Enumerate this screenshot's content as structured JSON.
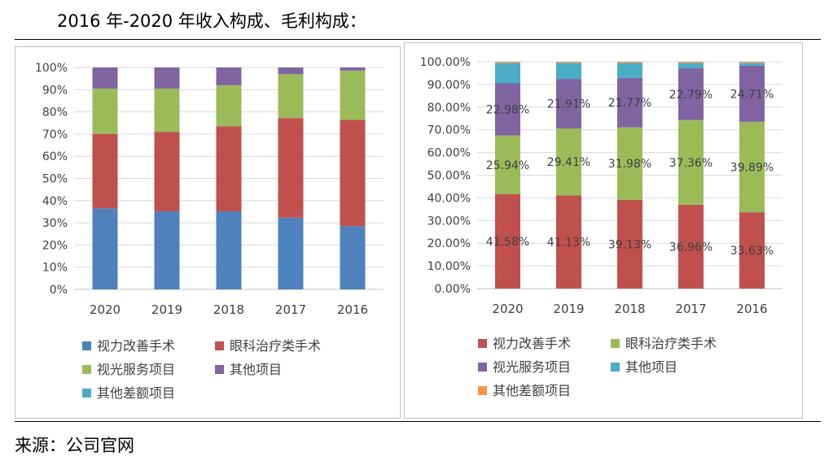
{
  "title": "2016 年-2020 年收入构成、毛利构成：",
  "source": "来源：公司官网",
  "chart_data": [
    {
      "type": "bar",
      "stacked": true,
      "name": "收入构成",
      "categories": [
        "2020",
        "2019",
        "2018",
        "2017",
        "2016"
      ],
      "ylim": [
        0,
        100
      ],
      "yticks": [
        "0%",
        "10%",
        "20%",
        "30%",
        "40%",
        "50%",
        "60%",
        "70%",
        "80%",
        "90%",
        "100%"
      ],
      "legend_position": "bottom",
      "series": [
        {
          "name": "视力改善手术",
          "color": "#4f81bd",
          "values": [
            36.5,
            35.2,
            35.2,
            32.3,
            28.5
          ]
        },
        {
          "name": "眼科治疗类手术",
          "color": "#c0504d",
          "values": [
            33.5,
            35.8,
            38.3,
            44.9,
            47.9
          ]
        },
        {
          "name": "视光服务项目",
          "color": "#9bbb59",
          "values": [
            20.5,
            19.5,
            18.5,
            19.8,
            22.2
          ]
        },
        {
          "name": "其他项目",
          "color": "#8064a2",
          "values": [
            9.5,
            9.5,
            8.0,
            3.0,
            1.4
          ]
        },
        {
          "name": "其他差额项目",
          "color": "#4bacc6",
          "values": [
            0,
            0,
            0,
            0,
            0
          ]
        }
      ]
    },
    {
      "type": "bar",
      "stacked": true,
      "name": "毛利构成",
      "categories": [
        "2020",
        "2019",
        "2018",
        "2017",
        "2016"
      ],
      "ylim": [
        0,
        100
      ],
      "yticks": [
        "0.00%",
        "10.00%",
        "20.00%",
        "30.00%",
        "40.00%",
        "50.00%",
        "60.00%",
        "70.00%",
        "80.00%",
        "90.00%",
        "100.00%"
      ],
      "legend_position": "bottom",
      "series": [
        {
          "name": "视力改善手术",
          "color": "#c0504d",
          "values": [
            41.58,
            41.13,
            39.13,
            36.96,
            33.63
          ],
          "labels": [
            "41.58%",
            "41.13%",
            "39.13%",
            "36.96%",
            "33.63%"
          ]
        },
        {
          "name": "眼科治疗类手术",
          "color": "#9bbb59",
          "values": [
            25.94,
            29.41,
            31.98,
            37.36,
            39.89
          ],
          "labels": [
            "25.94%",
            "29.41%",
            "31.98%",
            "37.36%",
            "39.89%"
          ]
        },
        {
          "name": "视光服务项目",
          "color": "#8064a2",
          "values": [
            22.98,
            21.91,
            21.77,
            22.79,
            24.71
          ],
          "labels": [
            "22.98%",
            "21.91%",
            "21.77%",
            "22.79%",
            "24.71%"
          ]
        },
        {
          "name": "其他项目",
          "color": "#4bacc6",
          "values": [
            9.0,
            7.1,
            6.6,
            2.4,
            1.3
          ]
        },
        {
          "name": "其他差额项目",
          "color": "#f79646",
          "values": [
            0.5,
            0.45,
            0.5,
            0.5,
            0.47
          ]
        }
      ]
    }
  ]
}
